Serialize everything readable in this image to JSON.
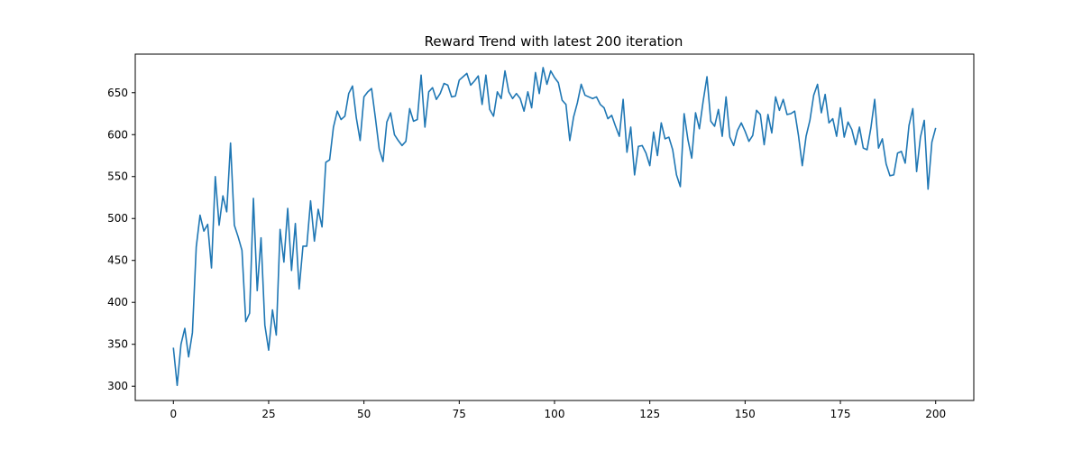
{
  "chart_data": {
    "type": "line",
    "title": "Reward Trend with latest 200 iteration",
    "xlabel": "",
    "ylabel": "",
    "xlim": [
      -10,
      210
    ],
    "ylim": [
      283,
      696
    ],
    "xticks": [
      0,
      25,
      50,
      75,
      100,
      125,
      150,
      175,
      200
    ],
    "yticks": [
      300,
      350,
      400,
      450,
      500,
      550,
      600,
      650
    ],
    "grid": false,
    "line_color": "#1f77b4",
    "series": [
      {
        "values": [
          346,
          301,
          350,
          369,
          335,
          364,
          466,
          504,
          485,
          493,
          441,
          550,
          492,
          527,
          508,
          590,
          492,
          478,
          462,
          377,
          387,
          524,
          414,
          477,
          373,
          343,
          391,
          361,
          487,
          448,
          512,
          438,
          494,
          416,
          467,
          467,
          521,
          473,
          511,
          490,
          567,
          570,
          609,
          628,
          618,
          622,
          649,
          658,
          620,
          593,
          645,
          651,
          655,
          620,
          583,
          568,
          615,
          626,
          600,
          593,
          587,
          592,
          631,
          616,
          618,
          671,
          609,
          651,
          656,
          642,
          649,
          661,
          659,
          645,
          646,
          665,
          669,
          673,
          659,
          664,
          670,
          636,
          671,
          630,
          622,
          651,
          643,
          676,
          651,
          643,
          649,
          643,
          628,
          651,
          632,
          674,
          649,
          680,
          660,
          676,
          668,
          662,
          641,
          636,
          593,
          621,
          638,
          660,
          647,
          645,
          643,
          645,
          636,
          632,
          619,
          623,
          610,
          598,
          642,
          579,
          609,
          552,
          586,
          587,
          578,
          563,
          603,
          575,
          614,
          595,
          597,
          582,
          552,
          538,
          625,
          594,
          572,
          626,
          607,
          640,
          669,
          616,
          610,
          630,
          598,
          645,
          597,
          587,
          605,
          614,
          604,
          592,
          599,
          629,
          624,
          588,
          624,
          602,
          645,
          629,
          642,
          624,
          625,
          628,
          599,
          563,
          598,
          617,
          647,
          660,
          626,
          648,
          614,
          619,
          598,
          632,
          597,
          615,
          606,
          588,
          609,
          584,
          582,
          608,
          642,
          584,
          595,
          565,
          551,
          552,
          578,
          580,
          566,
          611,
          631,
          556,
          597,
          617,
          535,
          591,
          608
        ]
      }
    ]
  }
}
